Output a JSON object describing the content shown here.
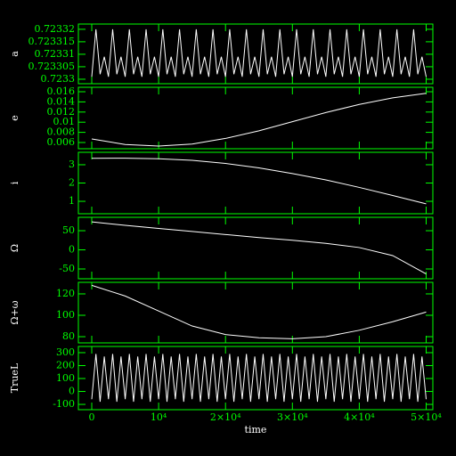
{
  "chart_data": [
    {
      "type": "line",
      "ylabel": "a",
      "color": "#ffffff",
      "x": [
        0,
        625,
        1250,
        1875,
        2500,
        3125,
        3750,
        4375,
        5000,
        5625,
        6250,
        6875,
        7500,
        8125,
        8750,
        9375,
        10000,
        10625,
        11250,
        11875,
        12500,
        13125,
        13750,
        14375,
        15000,
        15625,
        16250,
        16875,
        17500,
        18125,
        18750,
        19375,
        20000,
        20625,
        21250,
        21875,
        22500,
        23125,
        23750,
        24375,
        25000,
        25625,
        26250,
        26875,
        27500,
        28125,
        28750,
        29375,
        30000,
        30625,
        31250,
        31875,
        32500,
        33125,
        33750,
        34375,
        35000,
        35625,
        36250,
        36875,
        37500,
        38125,
        38750,
        39375,
        40000,
        40625,
        41250,
        41875,
        42500,
        43125,
        43750,
        44375,
        45000,
        45625,
        46250,
        46875,
        47500,
        48125,
        48750,
        49375,
        50000
      ],
      "values": [
        0.723301,
        0.72332,
        0.723302,
        0.723309,
        0.723301,
        0.72332,
        0.723302,
        0.723309,
        0.723301,
        0.72332,
        0.723302,
        0.723309,
        0.723301,
        0.72332,
        0.723302,
        0.723309,
        0.723301,
        0.72332,
        0.723302,
        0.723309,
        0.723301,
        0.72332,
        0.723302,
        0.723309,
        0.723301,
        0.72332,
        0.723302,
        0.723309,
        0.723301,
        0.72332,
        0.723302,
        0.723309,
        0.723301,
        0.72332,
        0.723302,
        0.723309,
        0.723301,
        0.72332,
        0.723302,
        0.723309,
        0.723301,
        0.72332,
        0.723302,
        0.723309,
        0.723301,
        0.72332,
        0.723302,
        0.723309,
        0.723301,
        0.72332,
        0.723302,
        0.723309,
        0.723301,
        0.72332,
        0.723302,
        0.723309,
        0.723301,
        0.72332,
        0.723302,
        0.723309,
        0.723301,
        0.72332,
        0.723302,
        0.723309,
        0.723301,
        0.72332,
        0.723302,
        0.723309,
        0.723301,
        0.72332,
        0.723302,
        0.723309,
        0.723301,
        0.72332,
        0.723302,
        0.723309,
        0.723301,
        0.72332,
        0.723302,
        0.723309,
        0.723301
      ],
      "xlim": [
        -2000,
        51000
      ],
      "xticks": [
        0,
        10000,
        20000,
        30000,
        40000,
        50000
      ],
      "ylim": [
        0.7232982,
        0.7233221
      ],
      "yticks": [
        0.7233,
        0.723305,
        0.72331,
        0.723315,
        0.72332
      ]
    },
    {
      "type": "line",
      "ylabel": "e",
      "color": "#ffffff",
      "x": [
        0,
        5000,
        10000,
        15000,
        20000,
        25000,
        30000,
        35000,
        40000,
        45000,
        50000
      ],
      "values": [
        0.0067,
        0.0056,
        0.0053,
        0.0057,
        0.0068,
        0.0083,
        0.0101,
        0.0119,
        0.0135,
        0.0148,
        0.0157
      ],
      "xlim": [
        -2000,
        51000
      ],
      "xticks": [
        0,
        10000,
        20000,
        30000,
        40000,
        50000
      ],
      "ylim": [
        0.00477,
        0.01688
      ],
      "yticks": [
        0.006,
        0.008,
        0.01,
        0.012,
        0.014,
        0.016
      ]
    },
    {
      "type": "line",
      "ylabel": "i",
      "color": "#ffffff",
      "x": [
        0,
        5000,
        10000,
        15000,
        20000,
        25000,
        30000,
        35000,
        40000,
        45000,
        50000
      ],
      "values": [
        3.35,
        3.36,
        3.33,
        3.24,
        3.07,
        2.83,
        2.52,
        2.17,
        1.76,
        1.32,
        0.86
      ],
      "xlim": [
        -2000,
        51000
      ],
      "xticks": [
        0,
        10000,
        20000,
        30000,
        40000,
        50000
      ],
      "ylim": [
        0.32,
        3.68
      ],
      "yticks": [
        1,
        2,
        3
      ]
    },
    {
      "type": "line",
      "ylabel": "Ω",
      "color": "#ffffff",
      "x": [
        0,
        5000,
        10000,
        15000,
        20000,
        25000,
        30000,
        35000,
        40000,
        45000,
        50000
      ],
      "values": [
        73,
        64,
        56,
        48,
        40,
        32,
        25,
        17,
        6,
        -15,
        -63
      ],
      "xlim": [
        -2000,
        51000
      ],
      "xticks": [
        0,
        10000,
        20000,
        30000,
        40000,
        50000
      ],
      "ylim": [
        -75.6,
        85
      ],
      "yticks": [
        -50,
        0,
        50
      ]
    },
    {
      "type": "line",
      "ylabel": "Ω+ω",
      "color": "#ffffff",
      "x": [
        0,
        5000,
        10000,
        15000,
        20000,
        25000,
        30000,
        35000,
        40000,
        45000,
        50000
      ],
      "values": [
        128,
        118,
        104,
        90,
        82,
        79,
        78,
        80,
        86,
        94,
        103
      ],
      "xlim": [
        -2000,
        51000
      ],
      "xticks": [
        0,
        10000,
        20000,
        30000,
        40000,
        50000
      ],
      "ylim": [
        74.2,
        130.8
      ],
      "yticks": [
        80,
        100,
        120
      ]
    },
    {
      "type": "line",
      "ylabel": "TrueL",
      "xlabel": "time",
      "color": "#ffffff",
      "x": [
        0,
        625,
        1250,
        1875,
        2500,
        3125,
        3750,
        4375,
        5000,
        5625,
        6250,
        6875,
        7500,
        8125,
        8750,
        9375,
        10000,
        10625,
        11250,
        11875,
        12500,
        13125,
        13750,
        14375,
        15000,
        15625,
        16250,
        16875,
        17500,
        18125,
        18750,
        19375,
        20000,
        20625,
        21250,
        21875,
        22500,
        23125,
        23750,
        24375,
        25000,
        25625,
        26250,
        26875,
        27500,
        28125,
        28750,
        29375,
        30000,
        30625,
        31250,
        31875,
        32500,
        33125,
        33750,
        34375,
        35000,
        35625,
        36250,
        36875,
        37500,
        38125,
        38750,
        39375,
        40000,
        40625,
        41250,
        41875,
        42500,
        43125,
        43750,
        44375,
        45000,
        45625,
        46250,
        46875,
        47500,
        48125,
        48750,
        49375,
        50000
      ],
      "values": [
        -60,
        290,
        -80,
        270,
        -60,
        290,
        -80,
        270,
        -60,
        290,
        -80,
        270,
        -60,
        290,
        -80,
        270,
        -60,
        290,
        -80,
        270,
        -60,
        290,
        -80,
        270,
        -60,
        290,
        -80,
        270,
        -60,
        290,
        -80,
        270,
        -60,
        290,
        -80,
        270,
        -60,
        290,
        -80,
        270,
        -60,
        290,
        -80,
        270,
        -60,
        290,
        -80,
        270,
        -60,
        290,
        -80,
        270,
        -60,
        290,
        -80,
        270,
        -60,
        290,
        -80,
        270,
        -60,
        290,
        -80,
        270,
        -60,
        290,
        -80,
        270,
        -60,
        290,
        -80,
        270,
        -60,
        290,
        -80,
        270,
        -60,
        290,
        -80,
        270,
        -60
      ],
      "xlim": [
        -2000,
        51000
      ],
      "xticks": [
        0,
        {
          "value": 10000,
          "label": "10⁴"
        },
        {
          "value": 20000,
          "label": "2×10⁴"
        },
        {
          "value": 30000,
          "label": "3×10⁴"
        },
        {
          "value": 40000,
          "label": "4×10⁴"
        },
        {
          "value": 50000,
          "label": "5×10⁴"
        }
      ],
      "ylim": [
        -141,
        348
      ],
      "yticks": [
        -100,
        0,
        100,
        200,
        300
      ]
    }
  ]
}
